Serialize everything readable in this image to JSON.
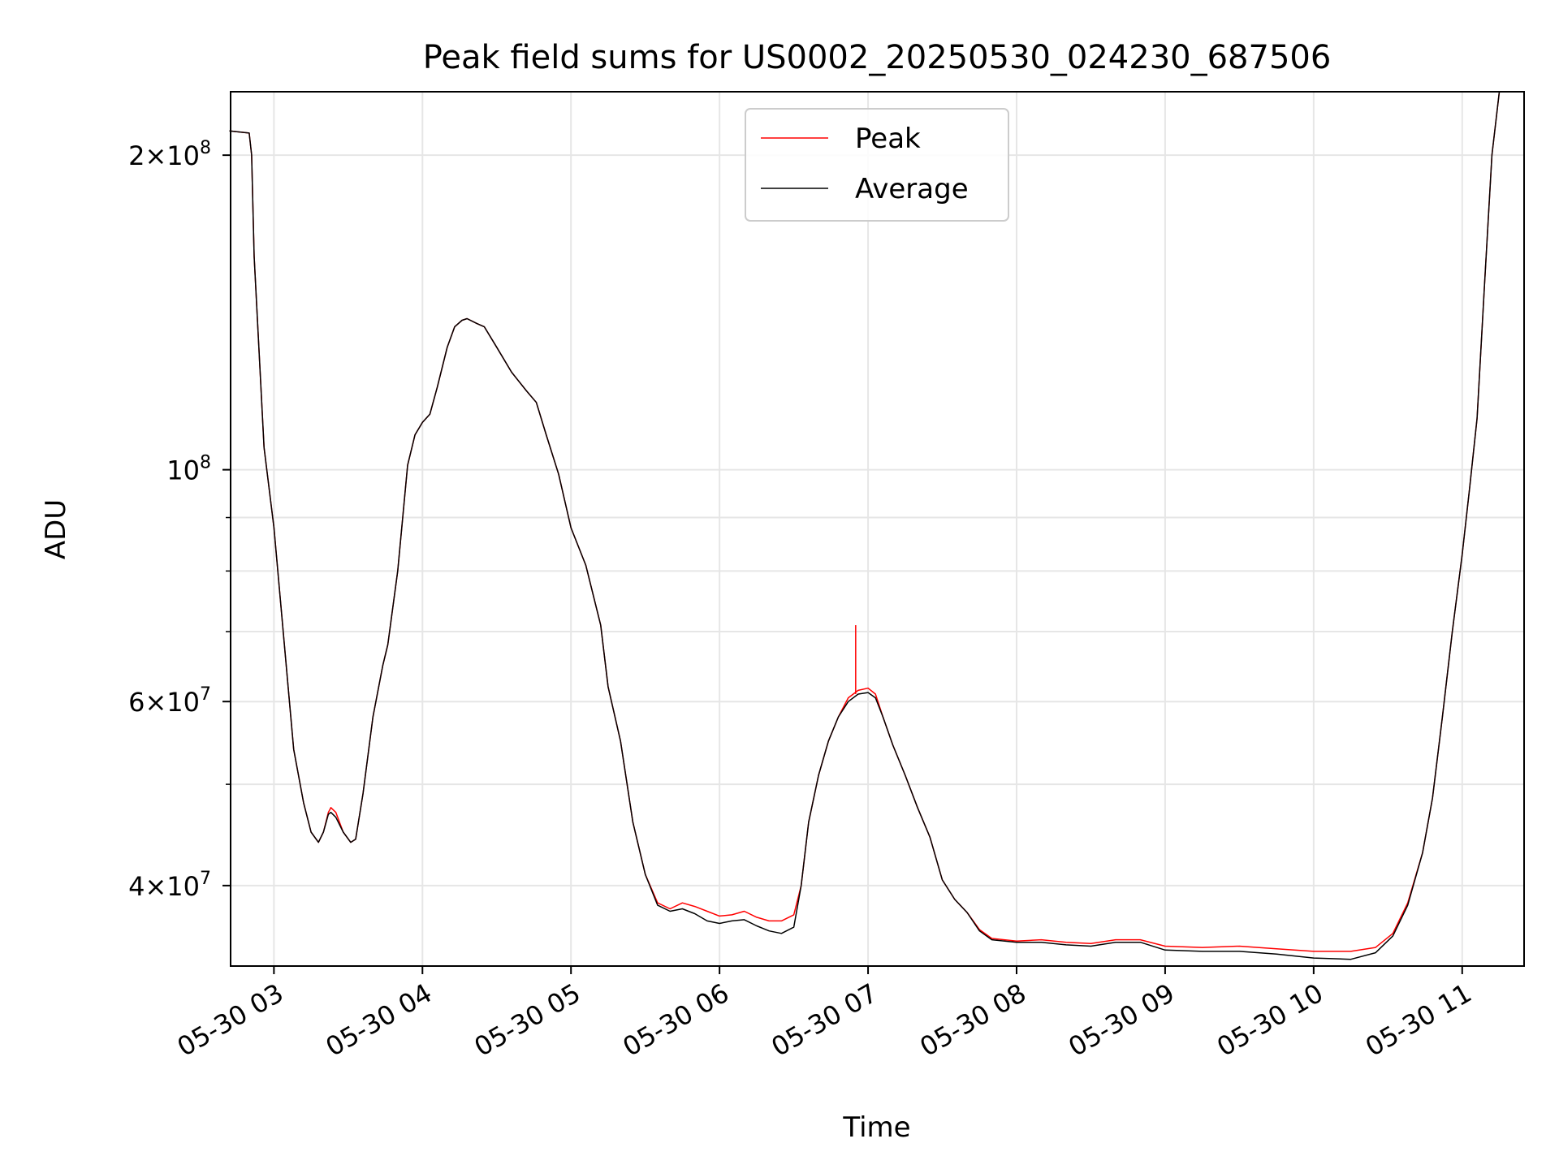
{
  "chart_data": {
    "type": "line",
    "title": "Peak field sums for US0002_20250530_024230_687506",
    "xlabel": "Time",
    "ylabel": "ADU",
    "yscale": "log",
    "ylim": [
      33500000,
      230000000
    ],
    "xlim": [
      "2025-05-30 02:42:30",
      "2025-05-30 11:25:00"
    ],
    "grid": true,
    "legend": "top-center",
    "x_ticks": [
      {
        "t": "2025-05-30 03:00",
        "label": "05-30 03"
      },
      {
        "t": "2025-05-30 04:00",
        "label": "05-30 04"
      },
      {
        "t": "2025-05-30 05:00",
        "label": "05-30 05"
      },
      {
        "t": "2025-05-30 06:00",
        "label": "05-30 06"
      },
      {
        "t": "2025-05-30 07:00",
        "label": "05-30 07"
      },
      {
        "t": "2025-05-30 08:00",
        "label": "05-30 08"
      },
      {
        "t": "2025-05-30 09:00",
        "label": "05-30 09"
      },
      {
        "t": "2025-05-30 10:00",
        "label": "05-30 10"
      },
      {
        "t": "2025-05-30 11:00",
        "label": "05-30 11"
      }
    ],
    "y_ticks": [
      {
        "value": 40000000,
        "base": "4×10",
        "exp": "7"
      },
      {
        "value": 60000000,
        "base": "6×10",
        "exp": "7"
      },
      {
        "value": 100000000,
        "base": "10",
        "exp": "8"
      },
      {
        "value": 200000000,
        "base": "2×10",
        "exp": "8"
      }
    ],
    "y_minor_ticks": [
      50000000,
      70000000,
      80000000,
      90000000
    ],
    "series": [
      {
        "name": "Peak",
        "color": "#ff0000",
        "points": [
          [
            "2025-05-30 02:42",
            211000000
          ],
          [
            "2025-05-30 02:50",
            210000000
          ],
          [
            "2025-05-30 02:51",
            200000000
          ],
          [
            "2025-05-30 02:52",
            160000000
          ],
          [
            "2025-05-30 02:56",
            105000000
          ],
          [
            "2025-05-30 03:00",
            88000000
          ],
          [
            "2025-05-30 03:04",
            69000000
          ],
          [
            "2025-05-30 03:08",
            54000000
          ],
          [
            "2025-05-30 03:12",
            48000000
          ],
          [
            "2025-05-30 03:15",
            45000000
          ],
          [
            "2025-05-30 03:18",
            44000000
          ],
          [
            "2025-05-30 03:20",
            45000000
          ],
          [
            "2025-05-30 03:22",
            47000000
          ],
          [
            "2025-05-30 03:23",
            47500000
          ],
          [
            "2025-05-30 03:25",
            47000000
          ],
          [
            "2025-05-30 03:28",
            45000000
          ],
          [
            "2025-05-30 03:31",
            44000000
          ],
          [
            "2025-05-30 03:33",
            44300000
          ],
          [
            "2025-05-30 03:36",
            49000000
          ],
          [
            "2025-05-30 03:40",
            58000000
          ],
          [
            "2025-05-30 03:44",
            65000000
          ],
          [
            "2025-05-30 03:46",
            68000000
          ],
          [
            "2025-05-30 03:50",
            80000000
          ],
          [
            "2025-05-30 03:54",
            101000000
          ],
          [
            "2025-05-30 03:57",
            108000000
          ],
          [
            "2025-05-30 04:00",
            111000000
          ],
          [
            "2025-05-30 04:03",
            113000000
          ],
          [
            "2025-05-30 04:06",
            120000000
          ],
          [
            "2025-05-30 04:10",
            131000000
          ],
          [
            "2025-05-30 04:13",
            137000000
          ],
          [
            "2025-05-30 04:16",
            139000000
          ],
          [
            "2025-05-30 04:18",
            139500000
          ],
          [
            "2025-05-30 04:22",
            138000000
          ],
          [
            "2025-05-30 04:25",
            137000000
          ],
          [
            "2025-05-30 04:30",
            131000000
          ],
          [
            "2025-05-30 04:36",
            124000000
          ],
          [
            "2025-05-30 04:42",
            119000000
          ],
          [
            "2025-05-30 04:46",
            116000000
          ],
          [
            "2025-05-30 04:50",
            108000000
          ],
          [
            "2025-05-30 04:55",
            99000000
          ],
          [
            "2025-05-30 05:00",
            88000000
          ],
          [
            "2025-05-30 05:06",
            81000000
          ],
          [
            "2025-05-30 05:12",
            71000000
          ],
          [
            "2025-05-30 05:15",
            62000000
          ],
          [
            "2025-05-30 05:20",
            55000000
          ],
          [
            "2025-05-30 05:25",
            46000000
          ],
          [
            "2025-05-30 05:30",
            41000000
          ],
          [
            "2025-05-30 05:35",
            38500000
          ],
          [
            "2025-05-30 05:40",
            38000000
          ],
          [
            "2025-05-30 05:45",
            38500000
          ],
          [
            "2025-05-30 05:50",
            38200000
          ],
          [
            "2025-05-30 05:55",
            37800000
          ],
          [
            "2025-05-30 06:00",
            37400000
          ],
          [
            "2025-05-30 06:05",
            37500000
          ],
          [
            "2025-05-30 06:10",
            37800000
          ],
          [
            "2025-05-30 06:15",
            37300000
          ],
          [
            "2025-05-30 06:20",
            37000000
          ],
          [
            "2025-05-30 06:25",
            37000000
          ],
          [
            "2025-05-30 06:30",
            37500000
          ],
          [
            "2025-05-30 06:33",
            40000000
          ],
          [
            "2025-05-30 06:36",
            46000000
          ],
          [
            "2025-05-30 06:40",
            51000000
          ],
          [
            "2025-05-30 06:44",
            55000000
          ],
          [
            "2025-05-30 06:48",
            58000000
          ],
          [
            "2025-05-30 06:52",
            60500000
          ],
          [
            "2025-05-30 06:56",
            61500000
          ],
          [
            "2025-05-30 07:00",
            61800000
          ],
          [
            "2025-05-30 07:03",
            61000000
          ],
          [
            "2025-05-30 07:06",
            58000000
          ],
          [
            "2025-05-30 07:10",
            54500000
          ],
          [
            "2025-05-30 07:15",
            51000000
          ],
          [
            "2025-05-30 07:20",
            47500000
          ],
          [
            "2025-05-30 07:25",
            44500000
          ],
          [
            "2025-05-30 07:30",
            40500000
          ],
          [
            "2025-05-30 07:35",
            38800000
          ],
          [
            "2025-05-30 07:40",
            37700000
          ],
          [
            "2025-05-30 07:45",
            36300000
          ],
          [
            "2025-05-30 07:50",
            35600000
          ],
          [
            "2025-05-30 08:00",
            35400000
          ],
          [
            "2025-05-30 08:10",
            35500000
          ],
          [
            "2025-05-30 08:20",
            35300000
          ],
          [
            "2025-05-30 08:30",
            35200000
          ],
          [
            "2025-05-30 08:40",
            35500000
          ],
          [
            "2025-05-30 08:50",
            35500000
          ],
          [
            "2025-05-30 09:00",
            35000000
          ],
          [
            "2025-05-30 09:15",
            34900000
          ],
          [
            "2025-05-30 09:30",
            35000000
          ],
          [
            "2025-05-30 09:45",
            34800000
          ],
          [
            "2025-05-30 10:00",
            34600000
          ],
          [
            "2025-05-30 10:15",
            34600000
          ],
          [
            "2025-05-30 10:25",
            34900000
          ],
          [
            "2025-05-30 10:32",
            36000000
          ],
          [
            "2025-05-30 10:38",
            38500000
          ],
          [
            "2025-05-30 10:44",
            43000000
          ],
          [
            "2025-05-30 10:48",
            48500000
          ],
          [
            "2025-05-30 10:52",
            58000000
          ],
          [
            "2025-05-30 10:56",
            70000000
          ],
          [
            "2025-05-30 11:00",
            83000000
          ],
          [
            "2025-05-30 11:03",
            96000000
          ],
          [
            "2025-05-30 11:06",
            112000000
          ],
          [
            "2025-05-30 11:09",
            150000000
          ],
          [
            "2025-05-30 11:12",
            200000000
          ],
          [
            "2025-05-30 11:15",
            230000000
          ]
        ]
      },
      {
        "name": "Average",
        "color": "#000000",
        "points": [
          [
            "2025-05-30 02:42",
            211000000
          ],
          [
            "2025-05-30 02:50",
            210000000
          ],
          [
            "2025-05-30 02:51",
            200000000
          ],
          [
            "2025-05-30 02:52",
            160000000
          ],
          [
            "2025-05-30 02:56",
            105000000
          ],
          [
            "2025-05-30 03:00",
            88000000
          ],
          [
            "2025-05-30 03:04",
            69000000
          ],
          [
            "2025-05-30 03:08",
            54000000
          ],
          [
            "2025-05-30 03:12",
            48000000
          ],
          [
            "2025-05-30 03:15",
            45000000
          ],
          [
            "2025-05-30 03:18",
            44000000
          ],
          [
            "2025-05-30 03:20",
            45000000
          ],
          [
            "2025-05-30 03:22",
            46800000
          ],
          [
            "2025-05-30 03:23",
            47000000
          ],
          [
            "2025-05-30 03:25",
            46500000
          ],
          [
            "2025-05-30 03:28",
            45000000
          ],
          [
            "2025-05-30 03:31",
            44000000
          ],
          [
            "2025-05-30 03:33",
            44300000
          ],
          [
            "2025-05-30 03:36",
            49000000
          ],
          [
            "2025-05-30 03:40",
            58000000
          ],
          [
            "2025-05-30 03:44",
            65000000
          ],
          [
            "2025-05-30 03:46",
            68000000
          ],
          [
            "2025-05-30 03:50",
            80000000
          ],
          [
            "2025-05-30 03:54",
            101000000
          ],
          [
            "2025-05-30 03:57",
            108000000
          ],
          [
            "2025-05-30 04:00",
            111000000
          ],
          [
            "2025-05-30 04:03",
            113000000
          ],
          [
            "2025-05-30 04:06",
            120000000
          ],
          [
            "2025-05-30 04:10",
            131000000
          ],
          [
            "2025-05-30 04:13",
            137000000
          ],
          [
            "2025-05-30 04:16",
            139000000
          ],
          [
            "2025-05-30 04:18",
            139500000
          ],
          [
            "2025-05-30 04:22",
            138000000
          ],
          [
            "2025-05-30 04:25",
            137000000
          ],
          [
            "2025-05-30 04:30",
            131000000
          ],
          [
            "2025-05-30 04:36",
            124000000
          ],
          [
            "2025-05-30 04:42",
            119000000
          ],
          [
            "2025-05-30 04:46",
            116000000
          ],
          [
            "2025-05-30 04:50",
            108000000
          ],
          [
            "2025-05-30 04:55",
            99000000
          ],
          [
            "2025-05-30 05:00",
            88000000
          ],
          [
            "2025-05-30 05:06",
            81000000
          ],
          [
            "2025-05-30 05:12",
            71000000
          ],
          [
            "2025-05-30 05:15",
            62000000
          ],
          [
            "2025-05-30 05:20",
            55000000
          ],
          [
            "2025-05-30 05:25",
            46000000
          ],
          [
            "2025-05-30 05:30",
            41000000
          ],
          [
            "2025-05-30 05:35",
            38300000
          ],
          [
            "2025-05-30 05:40",
            37800000
          ],
          [
            "2025-05-30 05:45",
            38000000
          ],
          [
            "2025-05-30 05:50",
            37600000
          ],
          [
            "2025-05-30 05:55",
            37000000
          ],
          [
            "2025-05-30 06:00",
            36800000
          ],
          [
            "2025-05-30 06:05",
            37000000
          ],
          [
            "2025-05-30 06:10",
            37100000
          ],
          [
            "2025-05-30 06:15",
            36600000
          ],
          [
            "2025-05-30 06:20",
            36200000
          ],
          [
            "2025-05-30 06:25",
            36000000
          ],
          [
            "2025-05-30 06:30",
            36500000
          ],
          [
            "2025-05-30 06:33",
            40000000
          ],
          [
            "2025-05-30 06:36",
            46000000
          ],
          [
            "2025-05-30 06:40",
            51000000
          ],
          [
            "2025-05-30 06:44",
            55000000
          ],
          [
            "2025-05-30 06:48",
            58000000
          ],
          [
            "2025-05-30 06:52",
            60000000
          ],
          [
            "2025-05-30 06:56",
            61000000
          ],
          [
            "2025-05-30 07:00",
            61200000
          ],
          [
            "2025-05-30 07:03",
            60500000
          ],
          [
            "2025-05-30 07:06",
            58000000
          ],
          [
            "2025-05-30 07:10",
            54500000
          ],
          [
            "2025-05-30 07:15",
            51000000
          ],
          [
            "2025-05-30 07:20",
            47500000
          ],
          [
            "2025-05-30 07:25",
            44500000
          ],
          [
            "2025-05-30 07:30",
            40500000
          ],
          [
            "2025-05-30 07:35",
            38800000
          ],
          [
            "2025-05-30 07:40",
            37700000
          ],
          [
            "2025-05-30 07:45",
            36200000
          ],
          [
            "2025-05-30 07:50",
            35500000
          ],
          [
            "2025-05-30 08:00",
            35300000
          ],
          [
            "2025-05-30 08:10",
            35300000
          ],
          [
            "2025-05-30 08:20",
            35100000
          ],
          [
            "2025-05-30 08:30",
            35000000
          ],
          [
            "2025-05-30 08:40",
            35300000
          ],
          [
            "2025-05-30 08:50",
            35300000
          ],
          [
            "2025-05-30 09:00",
            34700000
          ],
          [
            "2025-05-30 09:15",
            34600000
          ],
          [
            "2025-05-30 09:30",
            34600000
          ],
          [
            "2025-05-30 09:45",
            34400000
          ],
          [
            "2025-05-30 10:00",
            34100000
          ],
          [
            "2025-05-30 10:15",
            34000000
          ],
          [
            "2025-05-30 10:25",
            34500000
          ],
          [
            "2025-05-30 10:32",
            35800000
          ],
          [
            "2025-05-30 10:38",
            38300000
          ],
          [
            "2025-05-30 10:44",
            43000000
          ],
          [
            "2025-05-30 10:48",
            48500000
          ],
          [
            "2025-05-30 10:52",
            58000000
          ],
          [
            "2025-05-30 10:56",
            70000000
          ],
          [
            "2025-05-30 11:00",
            83000000
          ],
          [
            "2025-05-30 11:03",
            96000000
          ],
          [
            "2025-05-30 11:06",
            112000000
          ],
          [
            "2025-05-30 11:09",
            150000000
          ],
          [
            "2025-05-30 11:12",
            200000000
          ],
          [
            "2025-05-30 11:15",
            230000000
          ]
        ]
      }
    ],
    "annotations": [
      {
        "series": "Peak",
        "t": "2025-05-30 06:55",
        "value": 71000000,
        "note": "single spike"
      }
    ]
  }
}
